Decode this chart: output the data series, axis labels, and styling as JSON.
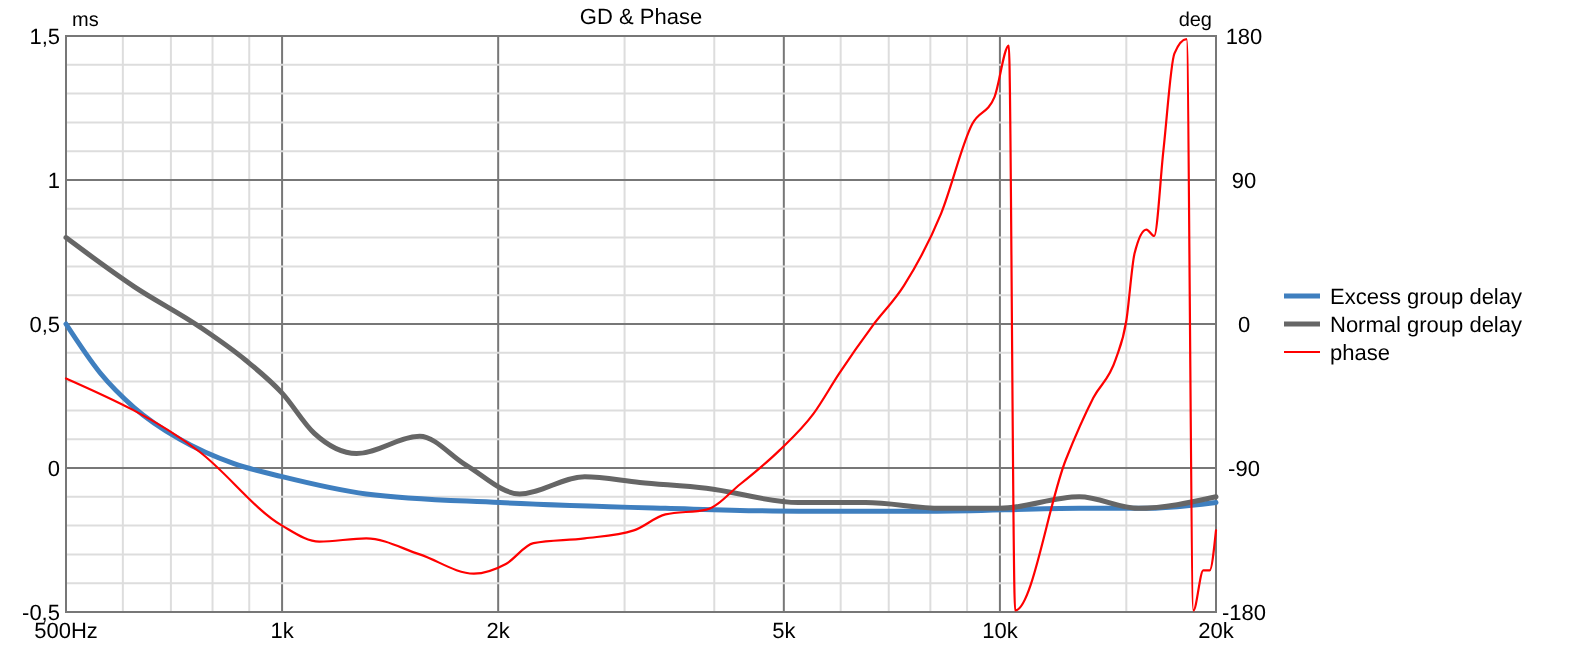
{
  "chart_data": {
    "type": "line",
    "title": "GD & Phase",
    "ylabel": "ms",
    "y2label": "deg",
    "log": "x",
    "grid": true,
    "legend": "right",
    "line_style": "solid",
    "xlim": [
      500,
      20000
    ],
    "xticks": [
      {
        "value": 500,
        "label": "500Hz"
      },
      {
        "value": 600,
        "label": null
      },
      {
        "value": 700,
        "label": null
      },
      {
        "value": 800,
        "label": null
      },
      {
        "value": 900,
        "label": null
      },
      {
        "value": 1000,
        "label": "1k"
      },
      {
        "value": 2000,
        "label": "2k"
      },
      {
        "value": 3000,
        "label": null
      },
      {
        "value": 4000,
        "label": null
      },
      {
        "value": 5000,
        "label": "5k"
      },
      {
        "value": 6000,
        "label": null
      },
      {
        "value": 7000,
        "label": null
      },
      {
        "value": 8000,
        "label": null
      },
      {
        "value": 9000,
        "label": null
      },
      {
        "value": 10000,
        "label": "10k"
      },
      {
        "value": 15000,
        "label": null
      },
      {
        "value": 20000,
        "label": "20k"
      }
    ],
    "ylim": [
      -0.5,
      1.5
    ],
    "yticks": [
      {
        "value": -0.5,
        "label": "-0,5"
      },
      {
        "value": -0.4,
        "label": null
      },
      {
        "value": -0.3,
        "label": null
      },
      {
        "value": -0.2,
        "label": null
      },
      {
        "value": -0.1,
        "label": null
      },
      0,
      {
        "value": 0.1,
        "label": null
      },
      {
        "value": 0.2,
        "label": null
      },
      {
        "value": 0.3,
        "label": null
      },
      {
        "value": 0.4,
        "label": null
      },
      {
        "value": 0.5,
        "label": "0,5"
      },
      {
        "value": 0.6,
        "label": null
      },
      {
        "value": 0.7,
        "label": null
      },
      {
        "value": 0.8,
        "label": null
      },
      {
        "value": 0.9,
        "label": null
      },
      1,
      {
        "value": 1.1,
        "label": null
      },
      {
        "value": 1.2,
        "label": null
      },
      {
        "value": 1.3,
        "label": null
      },
      {
        "value": 1.4,
        "label": null
      },
      {
        "value": 1.5,
        "label": "1,5"
      }
    ],
    "y2lim": [
      -180,
      180
    ],
    "y2ticks": [
      -180,
      -90,
      0,
      90,
      180
    ],
    "series": [
      {
        "name": "Excess group delay",
        "color": "#3f7fbf",
        "x": [
          500,
          558,
          622,
          720,
          857,
          1000,
          1310,
          2010,
          3420,
          5240,
          8000,
          12900,
          16000,
          20000
        ],
        "values": [
          0.5,
          0.33,
          0.21,
          0.1,
          0.015,
          -0.03,
          -0.09,
          -0.12,
          -0.14,
          -0.15,
          -0.15,
          -0.14,
          -0.14,
          -0.12
        ]
      },
      {
        "name": "Normal group delay",
        "color": "#666666",
        "x": [
          500,
          622,
          768,
          889,
          1000,
          1109,
          1270,
          1555,
          1804,
          2143,
          2640,
          3150,
          3900,
          5240,
          5690,
          6500,
          8280,
          10000,
          12900,
          15600,
          20000
        ],
        "values": [
          0.8,
          0.63,
          0.49,
          0.375,
          0.26,
          0.12,
          0.05,
          0.11,
          0.01,
          -0.09,
          -0.03,
          -0.05,
          -0.07,
          -0.12,
          -0.12,
          -0.12,
          -0.14,
          -0.14,
          -0.1,
          -0.14,
          -0.1
        ]
      },
      {
        "name": "phase",
        "color": "#ff0000",
        "axis": "y2",
        "x": [
          500,
          768,
          1000,
          1127,
          1310,
          1555,
          1850,
          2050,
          2240,
          2640,
          3090,
          3420,
          3900,
          4350,
          4930,
          5500,
          5970,
          6650,
          7350,
          8280,
          9150,
          9830,
          10290,
          10500,
          12350,
          13500,
          14500,
          15000,
          15400,
          16000,
          16400,
          16900,
          17500,
          18200,
          18600,
          19200,
          19600,
          20000
        ],
        "values": [
          -34,
          -80,
          -126,
          -136,
          -134,
          -144,
          -156,
          -150,
          -137,
          -134,
          -129,
          -119,
          -116,
          -100,
          -79,
          -56,
          -31,
          -1,
          24,
          69,
          125,
          142,
          174,
          -179,
          -85,
          -46,
          -22,
          2,
          44,
          59,
          55,
          109,
          169,
          178,
          -179,
          -154,
          -154,
          -129
        ]
      }
    ]
  }
}
